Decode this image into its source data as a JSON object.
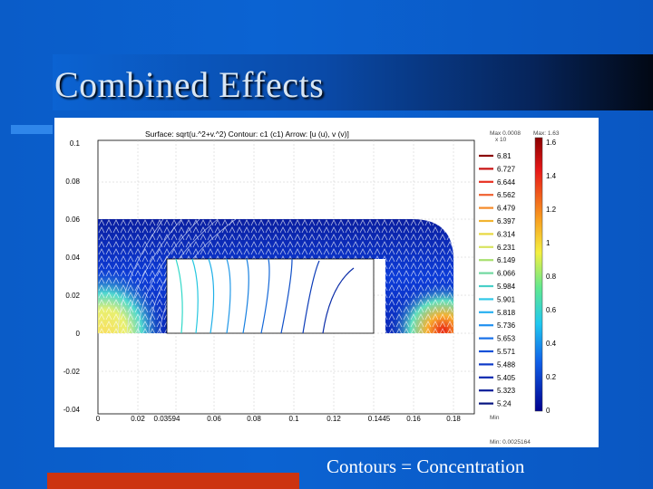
{
  "slide": {
    "title": "Combined Effects",
    "caption": "Contours = Concentration"
  },
  "plot": {
    "header": "Surface: sqrt(u.^2+v.^2)  Contour: c1 (c1)  Arrow: [u (u), v (v)]",
    "y_ticks": [
      "0.1",
      "0.08",
      "0.06",
      "0.04",
      "0.02",
      "0",
      "-0.02",
      "-0.04"
    ],
    "x_ticks": [
      "0",
      "0.02",
      "0.03594",
      "0.06",
      "0.08",
      "0.1",
      "0.12",
      "0.1445",
      "0.16",
      "0.18"
    ],
    "contour_legend": {
      "exponent": "x 10",
      "max_label": "Max 0.0008",
      "min_label": "Min",
      "levels": [
        "6.81",
        "6.727",
        "6.644",
        "6.562",
        "6.479",
        "6.397",
        "6.314",
        "6.231",
        "6.149",
        "6.066",
        "5.984",
        "5.901",
        "5.818",
        "5.736",
        "5.653",
        "5.571",
        "5.488",
        "5.405",
        "5.323",
        "5.24"
      ],
      "colors": [
        "#8b0000",
        "#c81010",
        "#e83020",
        "#f06030",
        "#f58a28",
        "#f2b430",
        "#e8d840",
        "#d8e460",
        "#a8e070",
        "#70d8a0",
        "#48d0c8",
        "#30c8e8",
        "#28b0f0",
        "#2090f0",
        "#1870e8",
        "#1050d8",
        "#0c38c8",
        "#0a28b0",
        "#081c98",
        "#061480"
      ]
    },
    "colorbar": {
      "max_label": "Max: 1.63",
      "min_label": "Min: 0.0025164",
      "ticks": [
        "1.6",
        "1.4",
        "1.2",
        "1",
        "0.8",
        "0.6",
        "0.4",
        "0.2",
        "0"
      ]
    }
  }
}
